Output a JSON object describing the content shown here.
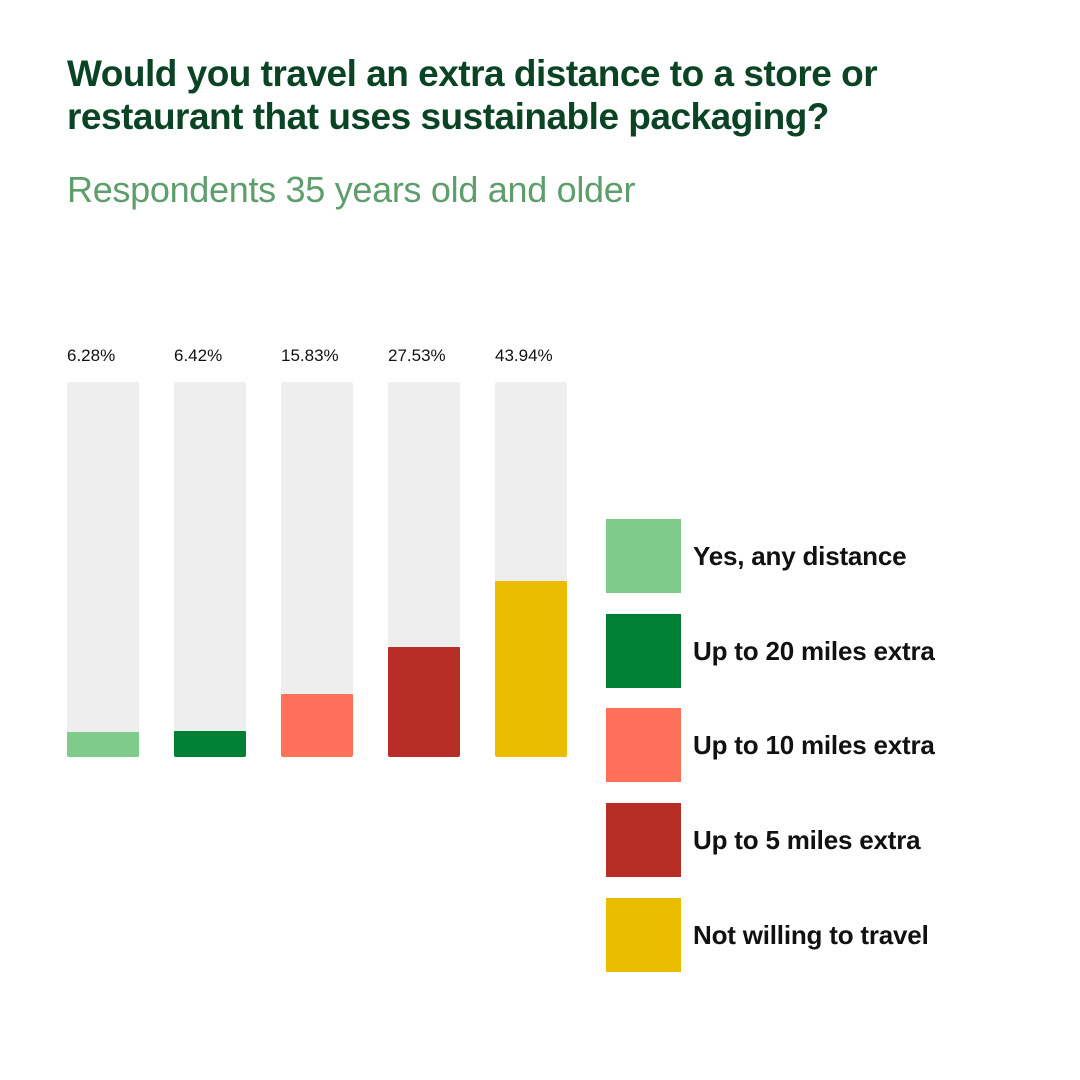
{
  "header": {
    "title": "Would you travel an extra distance to a store or restaurant that uses sustainable packaging?",
    "subtitle": "Respondents 35 years old and older"
  },
  "bars": [
    {
      "label": "6.28%",
      "value": 6.28,
      "color": "#7fcb8c"
    },
    {
      "label": "6.42%",
      "value": 6.42,
      "color": "#008035"
    },
    {
      "label": "15.83%",
      "value": 15.83,
      "color": "#ff705a"
    },
    {
      "label": "27.53%",
      "value": 27.53,
      "color": "#b72e26"
    },
    {
      "label": "43.94%",
      "value": 43.94,
      "color": "#ebbd00"
    }
  ],
  "legend": [
    {
      "label": "Yes, any distance",
      "color": "#7fcb8c"
    },
    {
      "label": "Up to 20 miles extra",
      "color": "#008035"
    },
    {
      "label": "Up to 10 miles extra",
      "color": "#ff705a"
    },
    {
      "label": "Up to 5 miles extra",
      "color": "#b72e26"
    },
    {
      "label": "Not willing to travel",
      "color": "#ebbd00"
    }
  ],
  "colors": {
    "title": "#0b4424",
    "subtitle": "#5e9d6c",
    "track": "#eeeeee"
  },
  "chart_data": {
    "type": "bar",
    "title": "Would you travel an extra distance to a store or restaurant that uses sustainable packaging?",
    "subtitle": "Respondents 35 years old and older",
    "categories": [
      "Yes, any distance",
      "Up to 20 miles extra",
      "Up to 10 miles extra",
      "Up to 5 miles extra",
      "Not willing to travel"
    ],
    "values": [
      6.28,
      6.42,
      15.83,
      27.53,
      43.94
    ],
    "data_labels": [
      "6.28%",
      "6.42%",
      "15.83%",
      "27.53%",
      "43.94%"
    ],
    "colors": [
      "#7fcb8c",
      "#008035",
      "#ff705a",
      "#b72e26",
      "#ebbd00"
    ],
    "xlabel": "",
    "ylabel": "",
    "ylim": [
      0,
      100
    ],
    "grid": false,
    "legend_position": "right"
  }
}
